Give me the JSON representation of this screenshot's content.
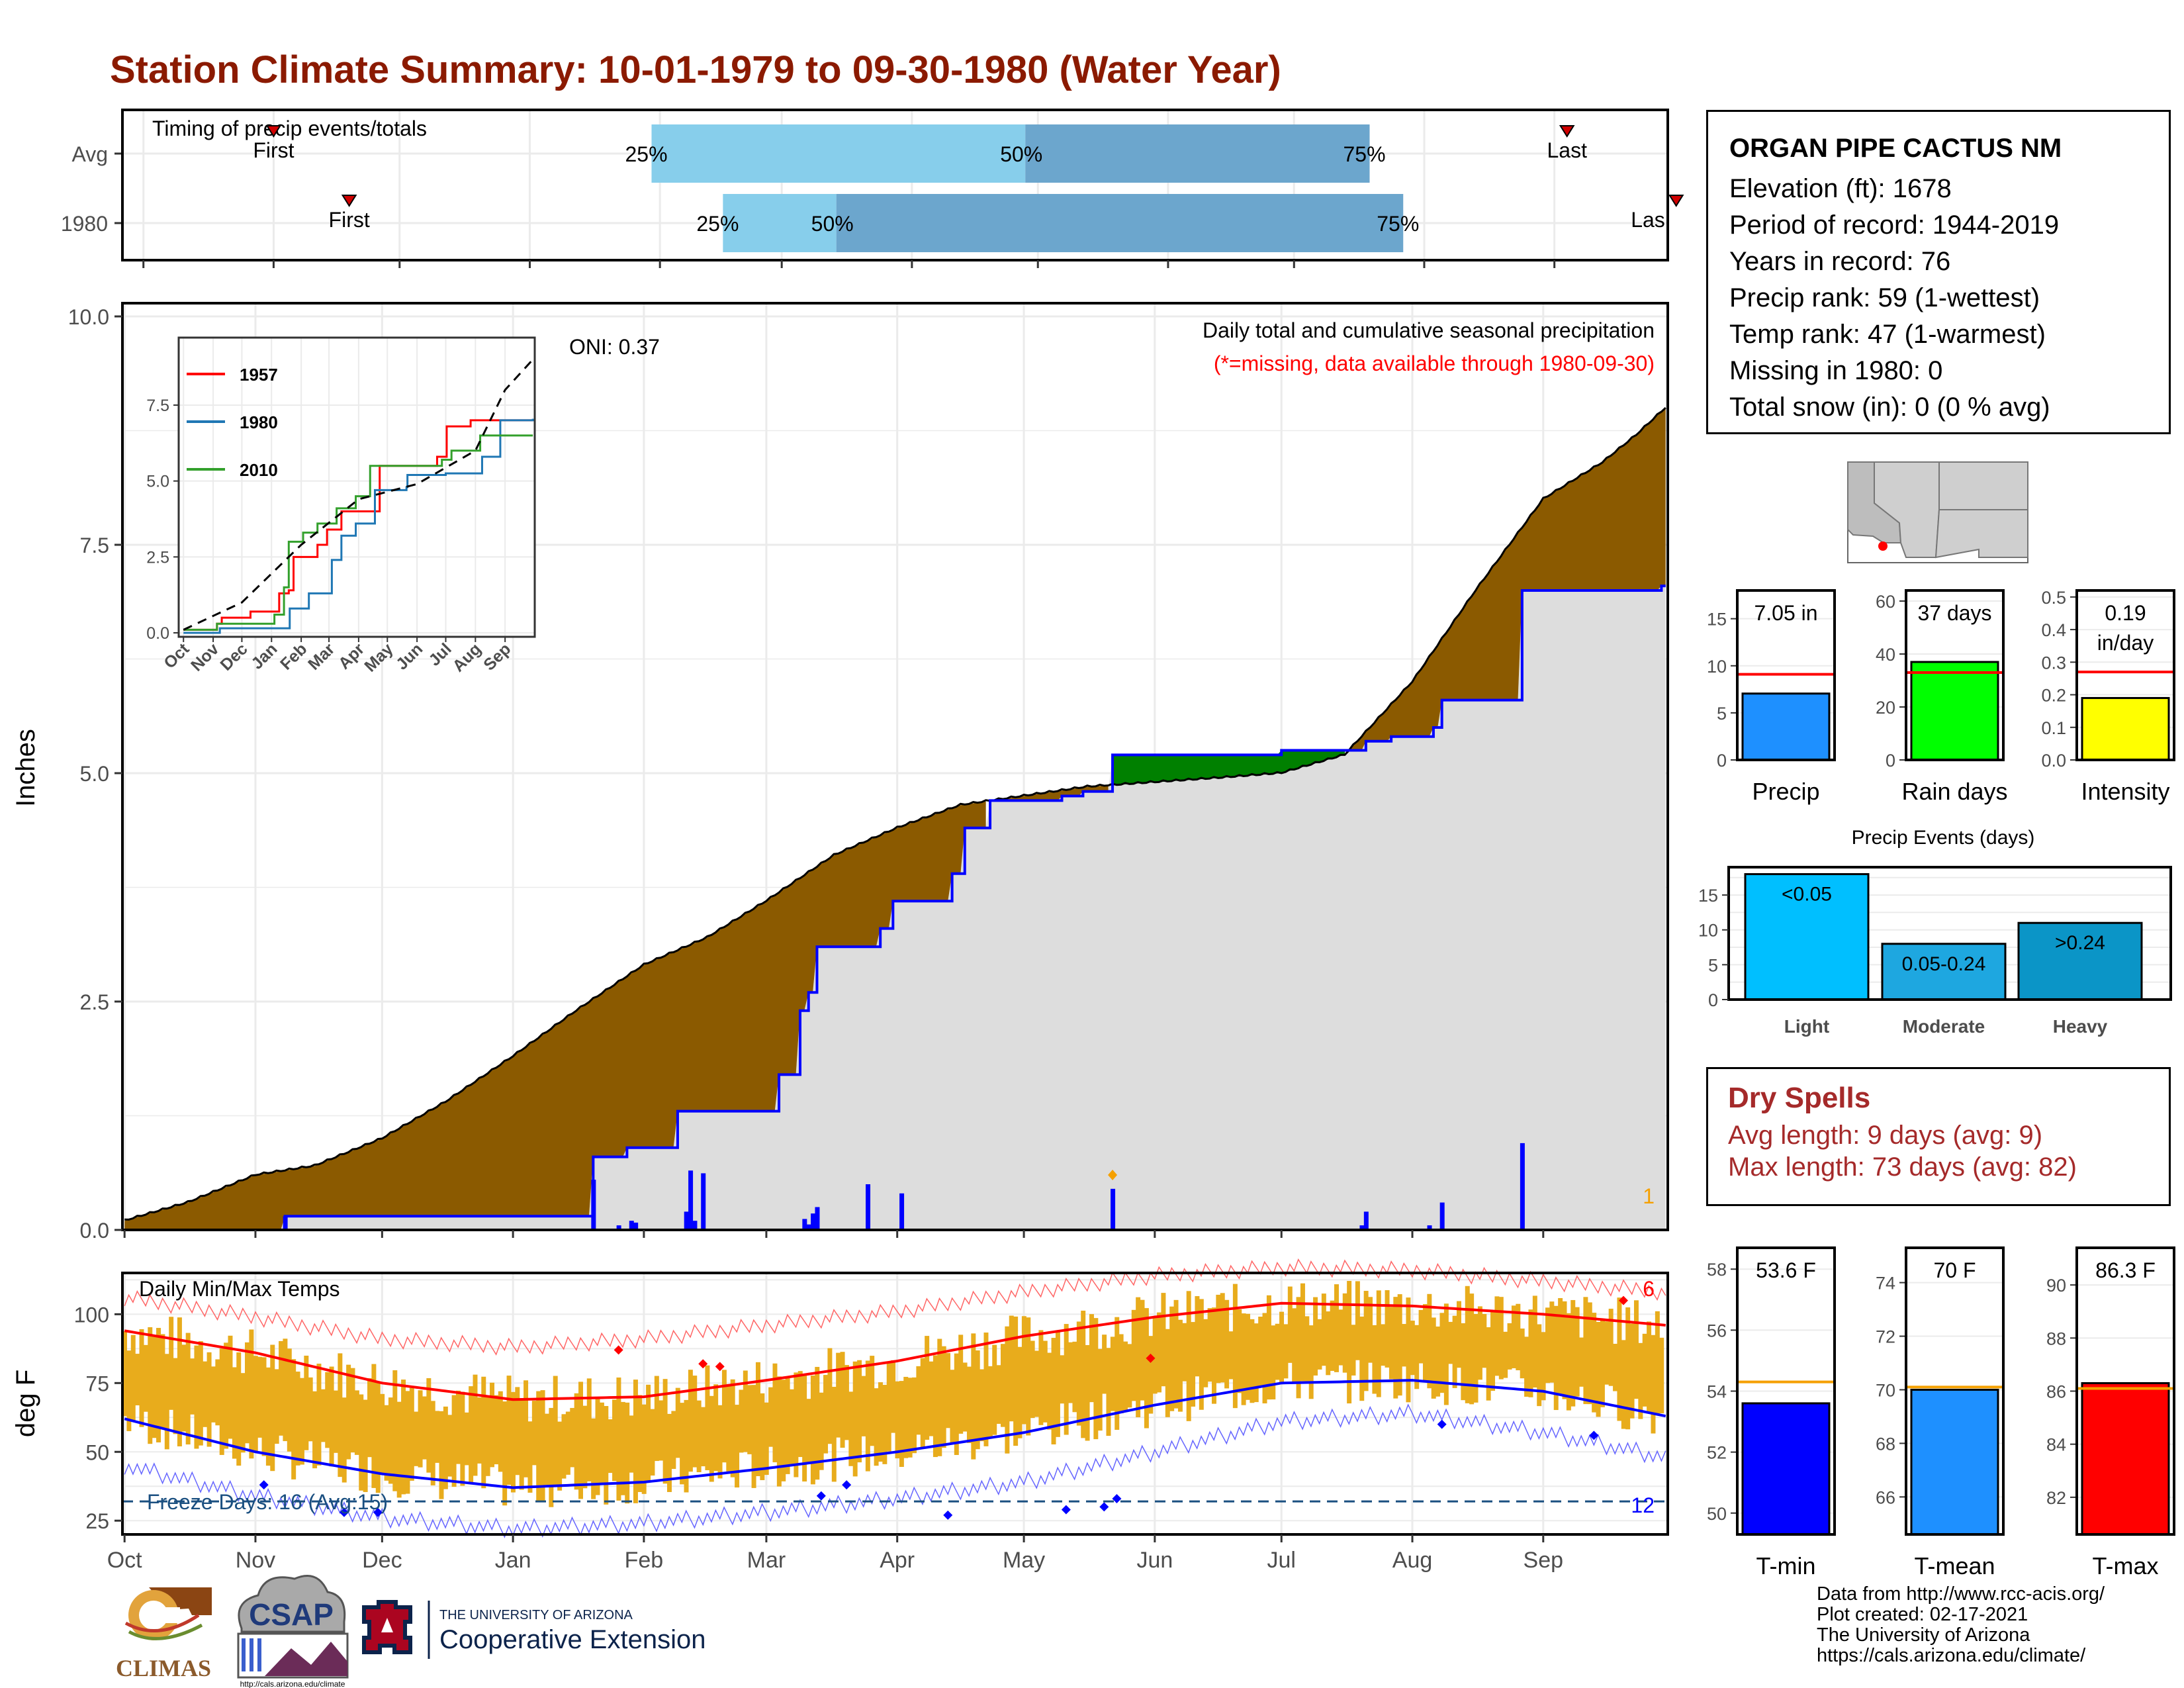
{
  "title": "Station Climate Summary: 10-01-1979 to 09-30-1980 (Water Year)",
  "station": {
    "name": "ORGAN PIPE CACTUS NM",
    "lines": [
      "Elevation (ft): 1678",
      "Period of record: 1944-2019",
      "Years in record: 76",
      "Precip rank: 59 (1-wettest)",
      "Temp rank: 47 (1-warmest)",
      "Missing in 1980: 0",
      "Total snow (in): 0 (0 % avg)"
    ]
  },
  "dry_spells": {
    "title": "Dry Spells",
    "avg_length": "Avg length: 9 days (avg: 9)",
    "max_length": "Max length: 73 days (avg: 82)"
  },
  "credits": [
    "Data from http://www.rcc-acis.org/",
    "Plot created: 02-17-2021",
    "The University of Arizona",
    "https://cals.arizona.edu/climate/"
  ],
  "logos": {
    "climas": "CLIMAS",
    "csap": "CSAP",
    "csap_url": "http://cals.arizona.edu/climate",
    "ua_line1": "THE UNIVERSITY OF ARIZONA",
    "ua_line2": "Cooperative Extension"
  },
  "colors": {
    "title": "#8b1a00",
    "precip_above": "#8b5a00",
    "precip_below": "#008000",
    "cum_line": "#0000ff",
    "tmax": "#ff0000",
    "tmin": "#0000ff",
    "temp_bars": "#e8ac1c",
    "timing_light": "#87ceeb",
    "timing_dark": "#6ca6cd",
    "dry": "#a52a2a"
  },
  "chart_data": [
    {
      "id": "timing",
      "type": "bar",
      "title": "Timing of precip events/totals",
      "rows": [
        {
          "label": "Avg",
          "first": "Nov 1",
          "last": "Sep 4",
          "p25": "Jan 30",
          "p50": "Apr 28",
          "p75": "Jul 19",
          "labels": {
            "first": "First",
            "last": "Last",
            "p25": "25%",
            "p50": "50%",
            "p75": "75%"
          }
        },
        {
          "label": "1980",
          "first": "Nov 19",
          "last": "Sep 30",
          "p25": "Feb 16",
          "p50": "Mar 14",
          "p75": "Jul 27",
          "labels": {
            "first": "First",
            "last": "Las",
            "p25": "25%",
            "p50": "50%",
            "p75": "75%"
          }
        }
      ]
    },
    {
      "id": "precip",
      "type": "area",
      "title": "Daily total and cumulative seasonal precipitation",
      "subtitle": "(*=missing, data available through 1980-09-30)",
      "ylabel": "Inches",
      "ylim": [
        0,
        10
      ],
      "yticks": [
        "0.0",
        "2.5",
        "5.0",
        "7.5",
        "10.0"
      ],
      "oni": "ONI: 0.37",
      "corner_count": "1",
      "avg_cumulative": [
        [
          0,
          0.1
        ],
        [
          15,
          0.3
        ],
        [
          31,
          0.6
        ],
        [
          45,
          0.7
        ],
        [
          61,
          1.0
        ],
        [
          76,
          1.4
        ],
        [
          92,
          1.9
        ],
        [
          107,
          2.4
        ],
        [
          123,
          2.9
        ],
        [
          138,
          3.2
        ],
        [
          152,
          3.6
        ],
        [
          168,
          4.1
        ],
        [
          183,
          4.4
        ],
        [
          198,
          4.65
        ],
        [
          213,
          4.75
        ],
        [
          228,
          4.85
        ],
        [
          244,
          4.9
        ],
        [
          260,
          4.95
        ],
        [
          274,
          5.0
        ],
        [
          289,
          5.2
        ],
        [
          305,
          6.0
        ],
        [
          320,
          7.0
        ],
        [
          336,
          8.0
        ],
        [
          350,
          8.4
        ],
        [
          358,
          8.7
        ],
        [
          365,
          9.0
        ]
      ],
      "cumulative_1980": [
        [
          0,
          0.0
        ],
        [
          37,
          0.0
        ],
        [
          38,
          0.15
        ],
        [
          110,
          0.15
        ],
        [
          111,
          0.8
        ],
        [
          119,
          0.9
        ],
        [
          131,
          1.3
        ],
        [
          154,
          1.3
        ],
        [
          155,
          1.7
        ],
        [
          160,
          2.4
        ],
        [
          162,
          2.6
        ],
        [
          164,
          3.1
        ],
        [
          178,
          3.1
        ],
        [
          179,
          3.3
        ],
        [
          182,
          3.6
        ],
        [
          195,
          3.6
        ],
        [
          196,
          3.9
        ],
        [
          199,
          4.4
        ],
        [
          204,
          4.4
        ],
        [
          205,
          4.7
        ],
        [
          222,
          4.75
        ],
        [
          227,
          4.8
        ],
        [
          233,
          4.8
        ],
        [
          234,
          5.2
        ],
        [
          273,
          5.2
        ],
        [
          274,
          5.25
        ],
        [
          293,
          5.25
        ],
        [
          294,
          5.35
        ],
        [
          300,
          5.4
        ],
        [
          310,
          5.5
        ],
        [
          312,
          5.8
        ],
        [
          330,
          5.8
        ],
        [
          331,
          7.0
        ],
        [
          364,
          7.05
        ]
      ],
      "daily_1980": [
        [
          38,
          0.15
        ],
        [
          111,
          0.55
        ],
        [
          117,
          0.05
        ],
        [
          120,
          0.1
        ],
        [
          121,
          0.08
        ],
        [
          133,
          0.2
        ],
        [
          134,
          0.65
        ],
        [
          135,
          0.1
        ],
        [
          137,
          0.62
        ],
        [
          161,
          0.12
        ],
        [
          162,
          0.06
        ],
        [
          163,
          0.18
        ],
        [
          164,
          0.25
        ],
        [
          176,
          0.5
        ],
        [
          184,
          0.4
        ],
        [
          234,
          0.45
        ],
        [
          293,
          0.05
        ],
        [
          294,
          0.2
        ],
        [
          309,
          0.05
        ],
        [
          312,
          0.3
        ],
        [
          331,
          0.95
        ]
      ],
      "missing_markers": [
        [
          234,
          0.5
        ]
      ]
    },
    {
      "id": "inset",
      "type": "line",
      "yticks": [
        "0.0",
        "2.5",
        "5.0",
        "7.5"
      ],
      "xticks": [
        "Oct",
        "Nov",
        "Dec",
        "Jan",
        "Feb",
        "Mar",
        "Apr",
        "May",
        "Jun",
        "Jul",
        "Aug",
        "Sep"
      ],
      "series": [
        {
          "name": "1957",
          "color": "#ff0000",
          "values": [
            [
              0,
              0.1
            ],
            [
              35,
              0.3
            ],
            [
              40,
              0.5
            ],
            [
              70,
              0.7
            ],
            [
              90,
              0.7
            ],
            [
              100,
              1.3
            ],
            [
              110,
              1.4
            ],
            [
              115,
              2.5
            ],
            [
              140,
              2.9
            ],
            [
              150,
              3.4
            ],
            [
              165,
              4.0
            ],
            [
              185,
              4.0
            ],
            [
              205,
              5.5
            ],
            [
              255,
              5.5
            ],
            [
              265,
              5.8
            ],
            [
              275,
              6.8
            ],
            [
              300,
              7.0
            ],
            [
              365,
              7.0
            ]
          ]
        },
        {
          "name": "1980",
          "color": "#1f77b4",
          "values": [
            [
              0,
              0.0
            ],
            [
              38,
              0.15
            ],
            [
              111,
              0.8
            ],
            [
              131,
              1.3
            ],
            [
              155,
              2.4
            ],
            [
              165,
              3.2
            ],
            [
              180,
              3.6
            ],
            [
              200,
              4.7
            ],
            [
              233,
              4.8
            ],
            [
              234,
              5.2
            ],
            [
              274,
              5.25
            ],
            [
              312,
              5.8
            ],
            [
              331,
              7.0
            ],
            [
              365,
              7.05
            ]
          ]
        },
        {
          "name": "2010",
          "color": "#33a02c",
          "values": [
            [
              0,
              0.1
            ],
            [
              35,
              0.3
            ],
            [
              95,
              0.6
            ],
            [
              105,
              1.5
            ],
            [
              110,
              3.0
            ],
            [
              125,
              3.3
            ],
            [
              140,
              3.6
            ],
            [
              160,
              4.1
            ],
            [
              180,
              4.5
            ],
            [
              195,
              5.5
            ],
            [
              255,
              5.5
            ],
            [
              270,
              5.7
            ],
            [
              280,
              6.0
            ],
            [
              310,
              6.5
            ],
            [
              365,
              6.5
            ]
          ]
        },
        {
          "name": "avg",
          "color": "#000000",
          "values": [
            [
              0,
              0.1
            ],
            [
              61,
              1.0
            ],
            [
              123,
              2.9
            ],
            [
              183,
              4.4
            ],
            [
              244,
              4.9
            ],
            [
              305,
              6.0
            ],
            [
              336,
              8.0
            ],
            [
              365,
              9.0
            ]
          ]
        }
      ]
    },
    {
      "id": "temps",
      "type": "bar",
      "title": "Daily Min/Max Temps",
      "ylabel": "deg F",
      "ylim": [
        20,
        115
      ],
      "yticks": [
        "25",
        "50",
        "75",
        "100"
      ],
      "xticks": [
        "Oct",
        "Nov",
        "Dec",
        "Jan",
        "Feb",
        "Mar",
        "Apr",
        "May",
        "Jun",
        "Jul",
        "Aug",
        "Sep"
      ],
      "freeze_line": 32,
      "freeze_text": "Freeze Days: 16 (Avg:15)",
      "record_high_count": "6",
      "record_low_count": "12",
      "avg_tmax": [
        [
          0,
          94
        ],
        [
          31,
          86
        ],
        [
          61,
          75
        ],
        [
          92,
          69
        ],
        [
          123,
          70
        ],
        [
          152,
          76
        ],
        [
          183,
          83
        ],
        [
          213,
          92
        ],
        [
          244,
          99
        ],
        [
          274,
          104
        ],
        [
          305,
          103
        ],
        [
          336,
          100
        ],
        [
          365,
          96
        ]
      ],
      "avg_tmin": [
        [
          0,
          62
        ],
        [
          31,
          50
        ],
        [
          61,
          42
        ],
        [
          92,
          37
        ],
        [
          123,
          39
        ],
        [
          152,
          44
        ],
        [
          183,
          50
        ],
        [
          213,
          57
        ],
        [
          244,
          67
        ],
        [
          274,
          75
        ],
        [
          305,
          76
        ],
        [
          336,
          72
        ],
        [
          365,
          63
        ]
      ],
      "rec_high": [
        [
          0,
          106
        ],
        [
          31,
          99
        ],
        [
          61,
          91
        ],
        [
          92,
          88
        ],
        [
          123,
          91
        ],
        [
          152,
          96
        ],
        [
          183,
          101
        ],
        [
          213,
          108
        ],
        [
          244,
          114
        ],
        [
          274,
          117
        ],
        [
          305,
          116
        ],
        [
          336,
          112
        ],
        [
          365,
          108
        ]
      ],
      "rec_low": [
        [
          0,
          45
        ],
        [
          31,
          34
        ],
        [
          61,
          26
        ],
        [
          92,
          22
        ],
        [
          123,
          24
        ],
        [
          152,
          28
        ],
        [
          183,
          33
        ],
        [
          213,
          39
        ],
        [
          244,
          50
        ],
        [
          274,
          61
        ],
        [
          305,
          64
        ],
        [
          336,
          57
        ],
        [
          365,
          48
        ]
      ],
      "record_high_points": [
        [
          117,
          87
        ],
        [
          137,
          82
        ],
        [
          141,
          81
        ],
        [
          243,
          84
        ],
        [
          355,
          105
        ]
      ],
      "record_low_points": [
        [
          33,
          38
        ],
        [
          52,
          28
        ],
        [
          60,
          28
        ],
        [
          165,
          34
        ],
        [
          171,
          38
        ],
        [
          195,
          27
        ],
        [
          223,
          29
        ],
        [
          232,
          30
        ],
        [
          235,
          33
        ],
        [
          312,
          60
        ],
        [
          348,
          56
        ]
      ]
    },
    {
      "id": "precip_bars",
      "type": "bar",
      "categories": [
        "Precip",
        "Rain days",
        "Intensity"
      ],
      "panels": [
        {
          "label": "Precip",
          "value": 7.05,
          "avg": 9.1,
          "ylim": [
            0,
            18
          ],
          "yticks": [
            "0",
            "5",
            "10",
            "15"
          ],
          "color": "#1e90ff",
          "value_text": "7.05 in"
        },
        {
          "label": "Rain days",
          "value": 37,
          "avg": 33,
          "ylim": [
            0,
            64
          ],
          "yticks": [
            "0",
            "20",
            "40",
            "60"
          ],
          "color": "#00ff00",
          "value_text": "37 days"
        },
        {
          "label": "Intensity",
          "value": 0.19,
          "avg": 0.27,
          "ylim": [
            0,
            0.52
          ],
          "yticks": [
            "0.0",
            "0.1",
            "0.2",
            "0.3",
            "0.4",
            "0.5"
          ],
          "color": "#ffff00",
          "value_text": "0.19",
          "value_text2": "in/day"
        }
      ]
    },
    {
      "id": "precip_events",
      "type": "bar",
      "title": "Precip Events (days)",
      "categories": [
        "Light",
        "Moderate",
        "Heavy"
      ],
      "values": [
        18,
        8,
        11
      ],
      "value_labels": [
        "<0.05",
        "0.05-0.24",
        ">0.24"
      ],
      "colors": [
        "#00bfff",
        "#1ea7e0",
        "#0b95c7"
      ],
      "ylim": [
        0,
        19
      ],
      "yticks": [
        "0",
        "5",
        "10",
        "15"
      ]
    },
    {
      "id": "temp_bars",
      "type": "bar",
      "categories": [
        "T-min",
        "T-mean",
        "T-max"
      ],
      "panels": [
        {
          "label": "T-min",
          "value": 53.6,
          "avg": 54.3,
          "ylim": [
            49.3,
            58.7
          ],
          "yticks": [
            "50",
            "52",
            "54",
            "56",
            "58"
          ],
          "color": "#0000ff",
          "value_text": "53.6 F"
        },
        {
          "label": "T-mean",
          "value": 70,
          "avg": 70.1,
          "ylim": [
            64.6,
            75.3
          ],
          "yticks": [
            "66",
            "68",
            "70",
            "72",
            "74"
          ],
          "color": "#1e90ff",
          "value_text": "70 F"
        },
        {
          "label": "T-max",
          "value": 86.3,
          "avg": 86.1,
          "ylim": [
            80.6,
            91.4
          ],
          "yticks": [
            "82",
            "84",
            "86",
            "88",
            "90"
          ],
          "color": "#ff0000",
          "value_text": "86.3 F"
        }
      ]
    }
  ]
}
